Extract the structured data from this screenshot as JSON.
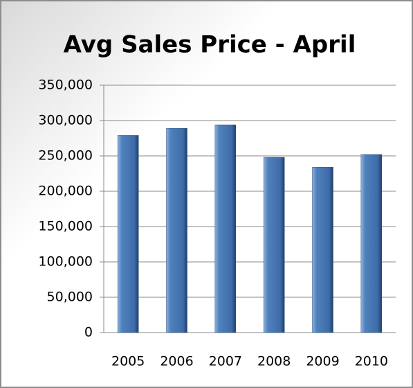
{
  "chart_data": {
    "type": "bar",
    "title": "Avg Sales Price - April",
    "categories": [
      "2005",
      "2006",
      "2007",
      "2008",
      "2009",
      "2010"
    ],
    "values": [
      279000,
      289000,
      294000,
      248000,
      234000,
      252000
    ],
    "color": "#4f81bd",
    "ylim": [
      0,
      350000
    ],
    "yticks": [
      0,
      {
        "value": 50000,
        "label": "50,000"
      },
      {
        "value": 100000,
        "label": "100,000"
      },
      {
        "value": 150000,
        "label": "150,000"
      },
      {
        "value": 200000,
        "label": "200,000"
      },
      {
        "value": 250000,
        "label": "250,000"
      },
      {
        "value": 300000,
        "label": "300,000"
      },
      {
        "value": 350000,
        "label": "350,000"
      }
    ],
    "grid": true
  }
}
